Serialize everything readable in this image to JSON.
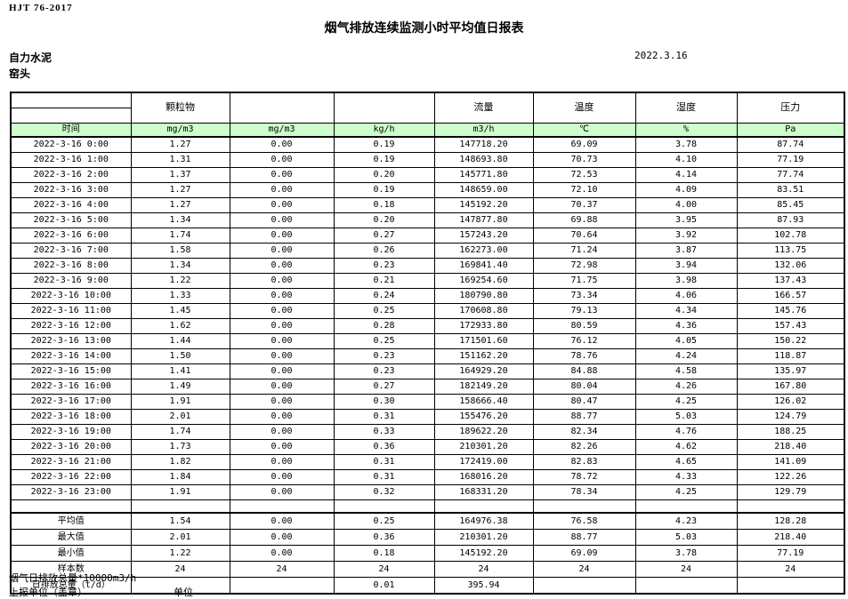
{
  "page": {
    "standard": "HJT  76-2017",
    "title": "烟气排放连续监测小时平均值日报表",
    "company": "自力水泥",
    "location": "窑头",
    "date": "2022.3.16"
  },
  "colors": {
    "header_green": "#ccffcc",
    "border": "#000000"
  },
  "table": {
    "group_headers": [
      "",
      "颗粒物",
      "",
      "",
      "流量",
      "温度",
      "湿度",
      "压力"
    ],
    "unit_headers": [
      "时间",
      "mg/m3",
      "mg/m3",
      "kg/h",
      "m3/h",
      "℃",
      "%",
      "Pa"
    ],
    "rows": [
      [
        "2022-3-16 0:00",
        "1.27",
        "0.00",
        "0.19",
        "147718.20",
        "69.09",
        "3.78",
        "87.74"
      ],
      [
        "2022-3-16 1:00",
        "1.31",
        "0.00",
        "0.19",
        "148693.80",
        "70.73",
        "4.10",
        "77.19"
      ],
      [
        "2022-3-16 2:00",
        "1.37",
        "0.00",
        "0.20",
        "145771.80",
        "72.53",
        "4.14",
        "77.74"
      ],
      [
        "2022-3-16 3:00",
        "1.27",
        "0.00",
        "0.19",
        "148659.00",
        "72.10",
        "4.09",
        "83.51"
      ],
      [
        "2022-3-16 4:00",
        "1.27",
        "0.00",
        "0.18",
        "145192.20",
        "70.37",
        "4.00",
        "85.45"
      ],
      [
        "2022-3-16 5:00",
        "1.34",
        "0.00",
        "0.20",
        "147877.80",
        "69.88",
        "3.95",
        "87.93"
      ],
      [
        "2022-3-16 6:00",
        "1.74",
        "0.00",
        "0.27",
        "157243.20",
        "70.64",
        "3.92",
        "102.78"
      ],
      [
        "2022-3-16 7:00",
        "1.58",
        "0.00",
        "0.26",
        "162273.00",
        "71.24",
        "3.87",
        "113.75"
      ],
      [
        "2022-3-16 8:00",
        "1.34",
        "0.00",
        "0.23",
        "169841.40",
        "72.98",
        "3.94",
        "132.06"
      ],
      [
        "2022-3-16 9:00",
        "1.22",
        "0.00",
        "0.21",
        "169254.60",
        "71.75",
        "3.98",
        "137.43"
      ],
      [
        "2022-3-16 10:00",
        "1.33",
        "0.00",
        "0.24",
        "180790.80",
        "73.34",
        "4.06",
        "166.57"
      ],
      [
        "2022-3-16 11:00",
        "1.45",
        "0.00",
        "0.25",
        "170608.80",
        "79.13",
        "4.34",
        "145.76"
      ],
      [
        "2022-3-16 12:00",
        "1.62",
        "0.00",
        "0.28",
        "172933.80",
        "80.59",
        "4.36",
        "157.43"
      ],
      [
        "2022-3-16 13:00",
        "1.44",
        "0.00",
        "0.25",
        "171501.60",
        "76.12",
        "4.05",
        "150.22"
      ],
      [
        "2022-3-16 14:00",
        "1.50",
        "0.00",
        "0.23",
        "151162.20",
        "78.76",
        "4.24",
        "118.87"
      ],
      [
        "2022-3-16 15:00",
        "1.41",
        "0.00",
        "0.23",
        "164929.20",
        "84.88",
        "4.58",
        "135.97"
      ],
      [
        "2022-3-16 16:00",
        "1.49",
        "0.00",
        "0.27",
        "182149.20",
        "80.04",
        "4.26",
        "167.80"
      ],
      [
        "2022-3-16 17:00",
        "1.91",
        "0.00",
        "0.30",
        "158666.40",
        "80.47",
        "4.25",
        "126.02"
      ],
      [
        "2022-3-16 18:00",
        "2.01",
        "0.00",
        "0.31",
        "155476.20",
        "88.77",
        "5.03",
        "124.79"
      ],
      [
        "2022-3-16 19:00",
        "1.74",
        "0.00",
        "0.33",
        "189622.20",
        "82.34",
        "4.76",
        "188.25"
      ],
      [
        "2022-3-16 20:00",
        "1.73",
        "0.00",
        "0.36",
        "210301.20",
        "82.26",
        "4.62",
        "218.40"
      ],
      [
        "2022-3-16 21:00",
        "1.82",
        "0.00",
        "0.31",
        "172419.00",
        "82.83",
        "4.65",
        "141.09"
      ],
      [
        "2022-3-16 22:00",
        "1.84",
        "0.00",
        "0.31",
        "168016.20",
        "78.72",
        "4.33",
        "122.26"
      ],
      [
        "2022-3-16 23:00",
        "1.91",
        "0.00",
        "0.32",
        "168331.20",
        "78.34",
        "4.25",
        "129.79"
      ]
    ],
    "summary": [
      {
        "label": "平均值",
        "values": [
          "1.54",
          "0.00",
          "0.25",
          "164976.38",
          "76.58",
          "4.23",
          "128.28"
        ]
      },
      {
        "label": "最大值",
        "values": [
          "2.01",
          "0.00",
          "0.36",
          "210301.20",
          "88.77",
          "5.03",
          "218.40"
        ]
      },
      {
        "label": "最小值",
        "values": [
          "1.22",
          "0.00",
          "0.18",
          "145192.20",
          "69.09",
          "3.78",
          "77.19"
        ]
      },
      {
        "label": "样本数",
        "values": [
          "24",
          "24",
          "24",
          "24",
          "24",
          "24",
          "24"
        ]
      },
      {
        "label": "日排放总量（t/d）",
        "values": [
          "",
          "",
          "0.01",
          "395.94",
          "",
          "",
          ""
        ]
      }
    ]
  },
  "footer": {
    "note": "烟气日排放总量*10000m3/h",
    "report_unit_label": "上报单位（盖章）",
    "unit_label": "单位"
  }
}
